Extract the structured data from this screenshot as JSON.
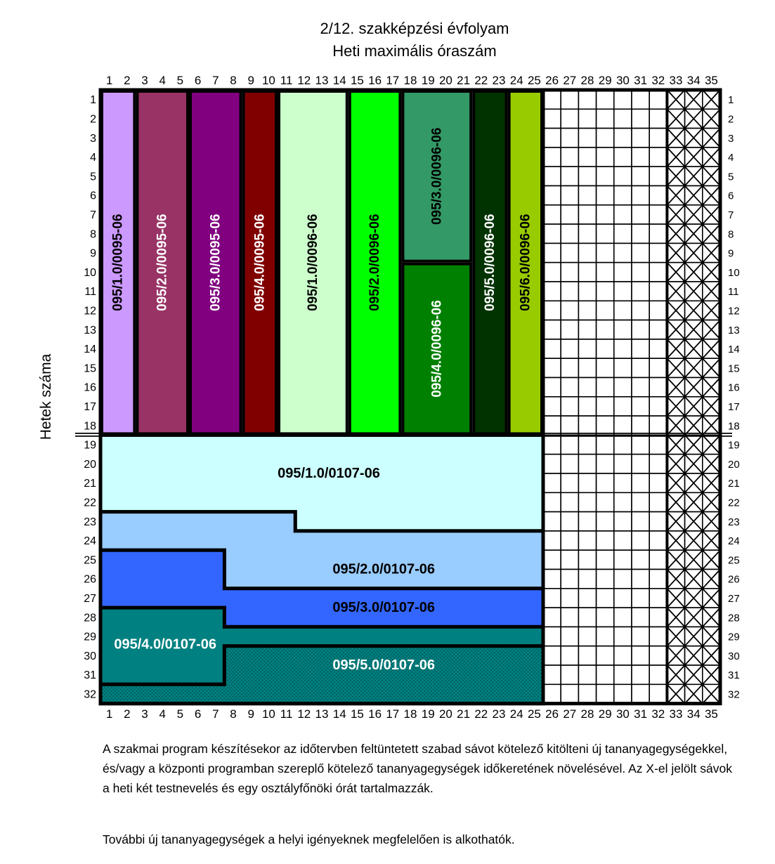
{
  "header": {
    "title_line1": "2/12. szakképzési évfolyam",
    "title_line2": "Heti maximális óraszám"
  },
  "y_axis_label": "Hetek száma",
  "grid": {
    "columns": 35,
    "rows": 32,
    "free_columns": [
      26,
      32
    ],
    "x_marked_columns": [
      33,
      35
    ]
  },
  "column_blocks": [
    {
      "code": "095/1.0/0095-06",
      "cols": [
        1,
        2
      ],
      "rows": [
        1,
        18
      ],
      "fill": "#cc99ff",
      "text_color": "#000000"
    },
    {
      "code": "095/2.0/0095-06",
      "cols": [
        3,
        5
      ],
      "rows": [
        1,
        18
      ],
      "fill": "#993366",
      "text_color": "#ffffff"
    },
    {
      "code": "095/3.0/0095-06",
      "cols": [
        6,
        8
      ],
      "rows": [
        1,
        18
      ],
      "fill": "#800080",
      "text_color": "#ffffff"
    },
    {
      "code": "095/4.0/0095-06",
      "cols": [
        9,
        10
      ],
      "rows": [
        1,
        18
      ],
      "fill": "#800000",
      "text_color": "#ffffff"
    },
    {
      "code": "095/1.0/0096-06",
      "cols": [
        11,
        14
      ],
      "rows": [
        1,
        18
      ],
      "fill": "#ccffcc",
      "text_color": "#000000"
    },
    {
      "code": "095/2.0/0096-06",
      "cols": [
        15,
        17
      ],
      "rows": [
        1,
        18
      ],
      "fill": "#00ff00",
      "text_color": "#000000"
    },
    {
      "code": "095/3.0/0096-06",
      "cols": [
        18,
        21
      ],
      "rows": [
        1,
        9
      ],
      "fill": "#339966",
      "text_color": "#000000"
    },
    {
      "code": "095/4.0/0096-06",
      "cols": [
        18,
        21
      ],
      "rows": [
        10,
        18
      ],
      "fill": "#008000",
      "text_color": "#ffffff"
    },
    {
      "code": "095/5.0/0096-06",
      "cols": [
        22,
        23
      ],
      "rows": [
        1,
        18
      ],
      "fill": "#003300",
      "text_color": "#ffffff"
    },
    {
      "code": "095/6.0/0096-06",
      "cols": [
        24,
        25
      ],
      "rows": [
        1,
        18
      ],
      "fill": "#99cc00",
      "text_color": "#000000"
    }
  ],
  "row_blocks": [
    {
      "code": "095/1.0/0107-06",
      "fill": "#ccffff",
      "text_color": "#000000"
    },
    {
      "code": "095/2.0/0107-06",
      "fill": "#99ccff",
      "text_color": "#000000"
    },
    {
      "code": "095/3.0/0107-06",
      "fill": "#3366ff",
      "text_color": "#000000"
    },
    {
      "code": "095/4.0/0107-06",
      "fill": "#008080",
      "text_color": "#ffffff"
    },
    {
      "code": "095/5.0/0107-06",
      "fill": "#008080",
      "text_color": "#ffffff",
      "pattern": "dotted"
    }
  ],
  "notes": {
    "paragraph1": "A szakmai program készítésekor az időtervben feltüntetett szabad sávot kötelező kitölteni új tananyagegységekkel, és/vagy a központi programban szereplő kötelező tananyagegységek időkeretének növelésével. Az X-el jelölt sávok a heti két testnevelés és egy osztályfőnöki órát tartalmazzák.",
    "paragraph2": "További új tananyagegységek a helyi igényeknek megfelelően is alkothatók."
  }
}
